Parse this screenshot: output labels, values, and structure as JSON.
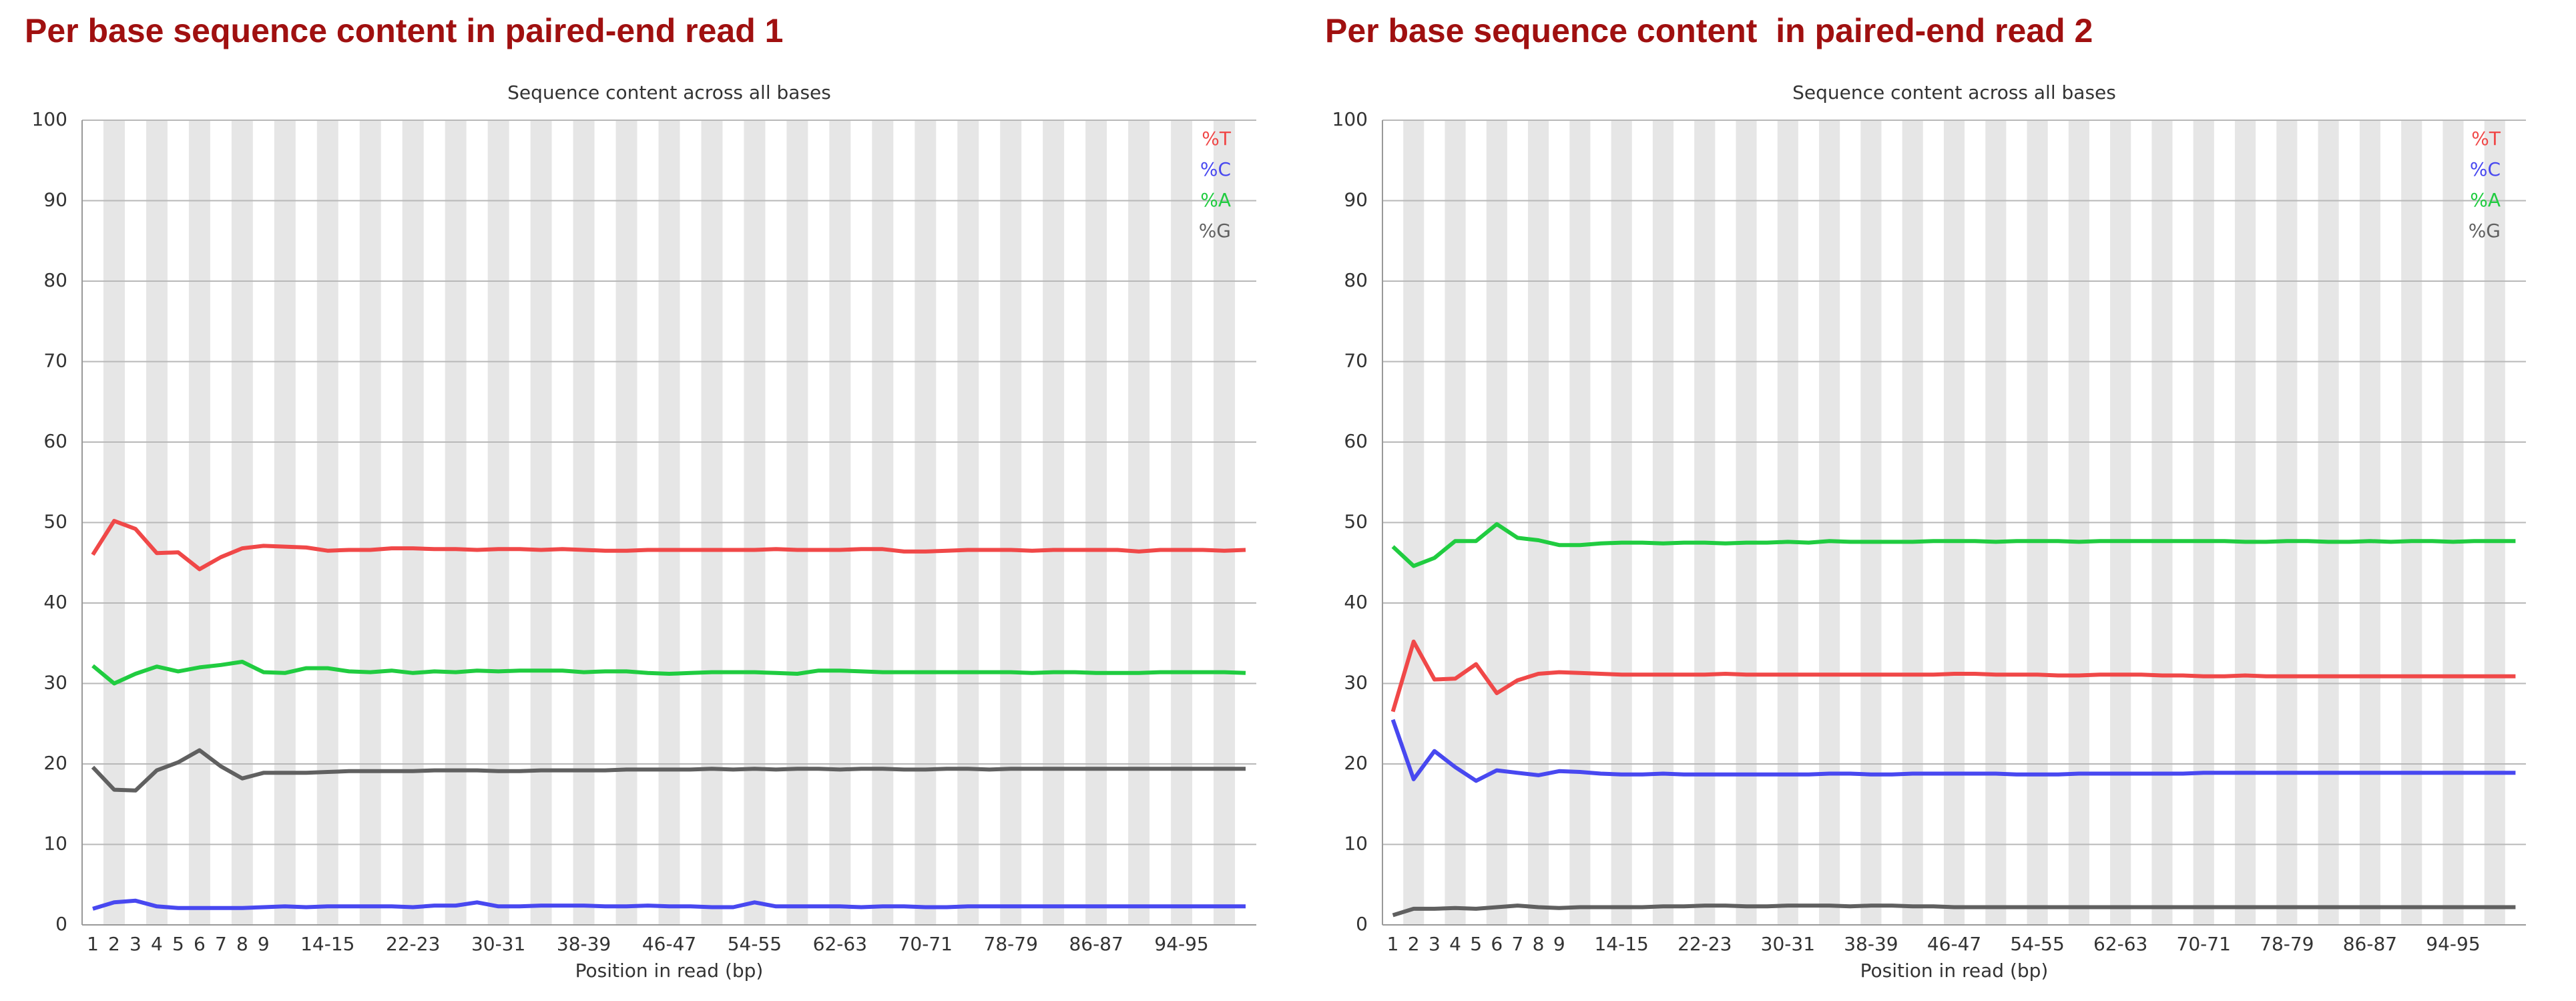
{
  "chart_data": [
    {
      "type": "line",
      "title": "Per base sequence content in paired-end read 1",
      "subtitle": "Sequence content across all bases",
      "xlabel": "Position in read (bp)",
      "categories": [
        "1",
        "2",
        "3",
        "4",
        "5",
        "6",
        "7",
        "8",
        "9",
        null,
        null,
        "14-15",
        null,
        null,
        null,
        "22-23",
        null,
        null,
        null,
        "30-31",
        null,
        null,
        null,
        "38-39",
        null,
        null,
        null,
        "46-47",
        null,
        null,
        null,
        "54-55",
        null,
        null,
        null,
        "62-63",
        null,
        null,
        null,
        "70-71",
        null,
        null,
        null,
        "78-79",
        null,
        null,
        null,
        "86-87",
        null,
        null,
        null,
        "94-95",
        null,
        null,
        null
      ],
      "ylim": [
        0,
        100
      ],
      "yticks": [
        0,
        10,
        20,
        30,
        40,
        50,
        60,
        70,
        80,
        90,
        100
      ],
      "grid": true,
      "legend": "top-right",
      "series": [
        {
          "name": "%T",
          "color": "#f04848",
          "values": [
            46,
            50.2,
            49.2,
            46.2,
            46.3,
            44.2,
            45.7,
            46.8,
            47.1,
            47,
            46.9,
            46.5,
            46.6,
            46.6,
            46.8,
            46.8,
            46.7,
            46.7,
            46.6,
            46.7,
            46.7,
            46.6,
            46.7,
            46.6,
            46.5,
            46.5,
            46.6,
            46.6,
            46.6,
            46.6,
            46.6,
            46.6,
            46.7,
            46.6,
            46.6,
            46.6,
            46.7,
            46.7,
            46.4,
            46.4,
            46.5,
            46.6,
            46.6,
            46.6,
            46.5,
            46.6,
            46.6,
            46.6,
            46.6,
            46.4,
            46.6,
            46.6,
            46.6,
            46.5,
            46.6
          ]
        },
        {
          "name": "%C",
          "color": "#4848f0",
          "values": [
            2,
            2.8,
            3,
            2.3,
            2.1,
            2.1,
            2.1,
            2.1,
            2.2,
            2.3,
            2.2,
            2.3,
            2.3,
            2.3,
            2.3,
            2.2,
            2.4,
            2.4,
            2.8,
            2.3,
            2.3,
            2.4,
            2.4,
            2.4,
            2.3,
            2.3,
            2.4,
            2.3,
            2.3,
            2.2,
            2.2,
            2.8,
            2.3,
            2.3,
            2.3,
            2.3,
            2.2,
            2.3,
            2.3,
            2.2,
            2.2,
            2.3,
            2.3,
            2.3,
            2.3,
            2.3,
            2.3,
            2.3,
            2.3,
            2.3,
            2.3,
            2.3,
            2.3,
            2.3,
            2.3
          ]
        },
        {
          "name": "%A",
          "color": "#20cc40",
          "values": [
            32.2,
            30,
            31.2,
            32.1,
            31.5,
            32,
            32.3,
            32.7,
            31.4,
            31.3,
            31.9,
            31.9,
            31.5,
            31.4,
            31.6,
            31.3,
            31.5,
            31.4,
            31.6,
            31.5,
            31.6,
            31.6,
            31.6,
            31.4,
            31.5,
            31.5,
            31.3,
            31.2,
            31.3,
            31.4,
            31.4,
            31.4,
            31.3,
            31.2,
            31.6,
            31.6,
            31.5,
            31.4,
            31.4,
            31.4,
            31.4,
            31.4,
            31.4,
            31.4,
            31.3,
            31.4,
            31.4,
            31.3,
            31.3,
            31.3,
            31.4,
            31.4,
            31.4,
            31.4,
            31.3
          ]
        },
        {
          "name": "%G",
          "color": "#606060",
          "values": [
            19.6,
            16.8,
            16.7,
            19.2,
            20.2,
            21.7,
            19.7,
            18.2,
            18.9,
            18.9,
            18.9,
            19,
            19.1,
            19.1,
            19.1,
            19.1,
            19.2,
            19.2,
            19.2,
            19.1,
            19.1,
            19.2,
            19.2,
            19.2,
            19.2,
            19.3,
            19.3,
            19.3,
            19.3,
            19.4,
            19.3,
            19.4,
            19.3,
            19.4,
            19.4,
            19.3,
            19.4,
            19.4,
            19.3,
            19.3,
            19.4,
            19.4,
            19.3,
            19.4,
            19.4,
            19.4,
            19.4,
            19.4,
            19.4,
            19.4,
            19.4,
            19.4,
            19.4,
            19.4,
            19.4
          ]
        }
      ]
    },
    {
      "type": "line",
      "title": "Per base sequence content  in paired-end read 2",
      "subtitle": "Sequence content across all bases",
      "xlabel": "Position in read (bp)",
      "categories": [
        "1",
        "2",
        "3",
        "4",
        "5",
        "6",
        "7",
        "8",
        "9",
        null,
        null,
        "14-15",
        null,
        null,
        null,
        "22-23",
        null,
        null,
        null,
        "30-31",
        null,
        null,
        null,
        "38-39",
        null,
        null,
        null,
        "46-47",
        null,
        null,
        null,
        "54-55",
        null,
        null,
        null,
        "62-63",
        null,
        null,
        null,
        "70-71",
        null,
        null,
        null,
        "78-79",
        null,
        null,
        null,
        "86-87",
        null,
        null,
        null,
        "94-95",
        null,
        null,
        null
      ],
      "ylim": [
        0,
        100
      ],
      "yticks": [
        0,
        10,
        20,
        30,
        40,
        50,
        60,
        70,
        80,
        90,
        100
      ],
      "grid": true,
      "legend": "top-right",
      "series": [
        {
          "name": "%T",
          "color": "#f04848",
          "values": [
            26.5,
            35.2,
            30.5,
            30.6,
            32.4,
            28.8,
            30.4,
            31.2,
            31.4,
            31.3,
            31.2,
            31.1,
            31.1,
            31.1,
            31.1,
            31.1,
            31.2,
            31.1,
            31.1,
            31.1,
            31.1,
            31.1,
            31.1,
            31.1,
            31.1,
            31.1,
            31.1,
            31.2,
            31.2,
            31.1,
            31.1,
            31.1,
            31,
            31,
            31.1,
            31.1,
            31.1,
            31,
            31,
            30.9,
            30.9,
            31,
            30.9,
            30.9,
            30.9,
            30.9,
            30.9,
            30.9,
            30.9,
            30.9,
            30.9,
            30.9,
            30.9,
            30.9,
            30.9
          ]
        },
        {
          "name": "%C",
          "color": "#4848f0",
          "values": [
            25.5,
            18.1,
            21.6,
            19.6,
            17.9,
            19.2,
            18.9,
            18.6,
            19.1,
            19,
            18.8,
            18.7,
            18.7,
            18.8,
            18.7,
            18.7,
            18.7,
            18.7,
            18.7,
            18.7,
            18.7,
            18.8,
            18.8,
            18.7,
            18.7,
            18.8,
            18.8,
            18.8,
            18.8,
            18.8,
            18.7,
            18.7,
            18.7,
            18.8,
            18.8,
            18.8,
            18.8,
            18.8,
            18.8,
            18.9,
            18.9,
            18.9,
            18.9,
            18.9,
            18.9,
            18.9,
            18.9,
            18.9,
            18.9,
            18.9,
            18.9,
            18.9,
            18.9,
            18.9,
            18.9
          ]
        },
        {
          "name": "%A",
          "color": "#20cc40",
          "values": [
            47,
            44.6,
            45.6,
            47.7,
            47.7,
            49.8,
            48.1,
            47.8,
            47.2,
            47.2,
            47.4,
            47.5,
            47.5,
            47.4,
            47.5,
            47.5,
            47.4,
            47.5,
            47.5,
            47.6,
            47.5,
            47.7,
            47.6,
            47.6,
            47.6,
            47.6,
            47.7,
            47.7,
            47.7,
            47.6,
            47.7,
            47.7,
            47.7,
            47.6,
            47.7,
            47.7,
            47.7,
            47.7,
            47.7,
            47.7,
            47.7,
            47.6,
            47.6,
            47.7,
            47.7,
            47.6,
            47.6,
            47.7,
            47.6,
            47.7,
            47.7,
            47.6,
            47.7,
            47.7,
            47.7
          ]
        },
        {
          "name": "%G",
          "color": "#606060",
          "values": [
            1.2,
            2,
            2,
            2.1,
            2,
            2.2,
            2.4,
            2.2,
            2.1,
            2.2,
            2.2,
            2.2,
            2.2,
            2.3,
            2.3,
            2.4,
            2.4,
            2.3,
            2.3,
            2.4,
            2.4,
            2.4,
            2.3,
            2.4,
            2.4,
            2.3,
            2.3,
            2.2,
            2.2,
            2.2,
            2.2,
            2.2,
            2.2,
            2.2,
            2.2,
            2.2,
            2.2,
            2.2,
            2.2,
            2.2,
            2.2,
            2.2,
            2.2,
            2.2,
            2.2,
            2.2,
            2.2,
            2.2,
            2.2,
            2.2,
            2.2,
            2.2,
            2.2,
            2.2,
            2.2
          ]
        }
      ]
    }
  ]
}
